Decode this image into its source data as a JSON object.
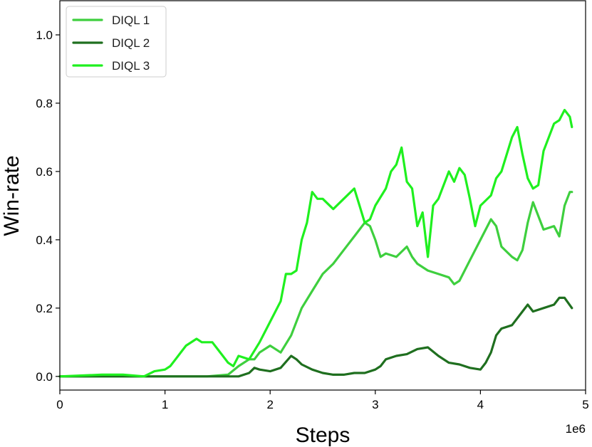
{
  "chart_data": {
    "type": "line",
    "xlabel": "Steps",
    "ylabel": "Win-rate",
    "x_offset_label": "1e6",
    "xlim": [
      0,
      5
    ],
    "ylim": [
      -0.04,
      1.1
    ],
    "xticks": [
      0,
      1,
      2,
      3,
      4,
      5
    ],
    "xtick_labels": [
      "0",
      "1",
      "2",
      "3",
      "4",
      "5"
    ],
    "yticks": [
      0.0,
      0.2,
      0.4,
      0.6,
      0.8,
      1.0
    ],
    "ytick_labels": [
      "0.0",
      "0.2",
      "0.4",
      "0.6",
      "0.8",
      "1.0"
    ],
    "grid": false,
    "legend_position": "top-left",
    "series": [
      {
        "name": "DIQL 1",
        "color": "#3ecf3e",
        "points": [
          [
            0,
            0.0
          ],
          [
            0.5,
            0.0
          ],
          [
            1.0,
            0.0
          ],
          [
            1.4,
            0.0
          ],
          [
            1.6,
            0.005
          ],
          [
            1.7,
            0.03
          ],
          [
            1.8,
            0.05
          ],
          [
            1.85,
            0.05
          ],
          [
            1.9,
            0.07
          ],
          [
            2.0,
            0.09
          ],
          [
            2.1,
            0.07
          ],
          [
            2.2,
            0.12
          ],
          [
            2.3,
            0.2
          ],
          [
            2.4,
            0.25
          ],
          [
            2.5,
            0.3
          ],
          [
            2.6,
            0.33
          ],
          [
            2.7,
            0.37
          ],
          [
            2.8,
            0.41
          ],
          [
            2.9,
            0.45
          ],
          [
            2.95,
            0.44
          ],
          [
            3.0,
            0.4
          ],
          [
            3.05,
            0.35
          ],
          [
            3.1,
            0.36
          ],
          [
            3.2,
            0.35
          ],
          [
            3.3,
            0.38
          ],
          [
            3.35,
            0.35
          ],
          [
            3.4,
            0.33
          ],
          [
            3.5,
            0.31
          ],
          [
            3.6,
            0.3
          ],
          [
            3.7,
            0.29
          ],
          [
            3.75,
            0.27
          ],
          [
            3.8,
            0.28
          ],
          [
            3.9,
            0.34
          ],
          [
            4.0,
            0.4
          ],
          [
            4.1,
            0.46
          ],
          [
            4.15,
            0.44
          ],
          [
            4.2,
            0.38
          ],
          [
            4.3,
            0.35
          ],
          [
            4.35,
            0.34
          ],
          [
            4.4,
            0.37
          ],
          [
            4.45,
            0.45
          ],
          [
            4.5,
            0.51
          ],
          [
            4.55,
            0.47
          ],
          [
            4.6,
            0.43
          ],
          [
            4.7,
            0.44
          ],
          [
            4.75,
            0.41
          ],
          [
            4.8,
            0.5
          ],
          [
            4.85,
            0.54
          ],
          [
            4.87,
            0.54
          ]
        ]
      },
      {
        "name": "DIQL 2",
        "color": "#1f6f1f",
        "points": [
          [
            0,
            0.0
          ],
          [
            1.0,
            0.0
          ],
          [
            1.7,
            0.0
          ],
          [
            1.8,
            0.01
          ],
          [
            1.85,
            0.025
          ],
          [
            1.9,
            0.02
          ],
          [
            2.0,
            0.015
          ],
          [
            2.1,
            0.025
          ],
          [
            2.2,
            0.06
          ],
          [
            2.25,
            0.05
          ],
          [
            2.3,
            0.035
          ],
          [
            2.4,
            0.02
          ],
          [
            2.5,
            0.01
          ],
          [
            2.6,
            0.005
          ],
          [
            2.7,
            0.005
          ],
          [
            2.8,
            0.01
          ],
          [
            2.9,
            0.01
          ],
          [
            3.0,
            0.02
          ],
          [
            3.05,
            0.03
          ],
          [
            3.1,
            0.05
          ],
          [
            3.2,
            0.06
          ],
          [
            3.3,
            0.065
          ],
          [
            3.4,
            0.08
          ],
          [
            3.5,
            0.085
          ],
          [
            3.6,
            0.06
          ],
          [
            3.7,
            0.04
          ],
          [
            3.8,
            0.035
          ],
          [
            3.9,
            0.025
          ],
          [
            4.0,
            0.02
          ],
          [
            4.05,
            0.04
          ],
          [
            4.1,
            0.07
          ],
          [
            4.15,
            0.12
          ],
          [
            4.2,
            0.14
          ],
          [
            4.3,
            0.15
          ],
          [
            4.4,
            0.19
          ],
          [
            4.45,
            0.21
          ],
          [
            4.5,
            0.19
          ],
          [
            4.6,
            0.2
          ],
          [
            4.7,
            0.21
          ],
          [
            4.75,
            0.23
          ],
          [
            4.8,
            0.23
          ],
          [
            4.87,
            0.2
          ]
        ]
      },
      {
        "name": "DIQL 3",
        "color": "#1ff01f",
        "points": [
          [
            0,
            0.0
          ],
          [
            0.4,
            0.005
          ],
          [
            0.6,
            0.005
          ],
          [
            0.8,
            0.0
          ],
          [
            0.9,
            0.015
          ],
          [
            1.0,
            0.02
          ],
          [
            1.05,
            0.03
          ],
          [
            1.1,
            0.05
          ],
          [
            1.2,
            0.09
          ],
          [
            1.3,
            0.11
          ],
          [
            1.35,
            0.1
          ],
          [
            1.45,
            0.1
          ],
          [
            1.5,
            0.08
          ],
          [
            1.6,
            0.04
          ],
          [
            1.65,
            0.03
          ],
          [
            1.7,
            0.06
          ],
          [
            1.8,
            0.05
          ],
          [
            1.9,
            0.1
          ],
          [
            2.0,
            0.16
          ],
          [
            2.1,
            0.22
          ],
          [
            2.15,
            0.3
          ],
          [
            2.2,
            0.3
          ],
          [
            2.25,
            0.31
          ],
          [
            2.3,
            0.4
          ],
          [
            2.35,
            0.45
          ],
          [
            2.4,
            0.54
          ],
          [
            2.45,
            0.52
          ],
          [
            2.5,
            0.52
          ],
          [
            2.6,
            0.49
          ],
          [
            2.7,
            0.52
          ],
          [
            2.8,
            0.55
          ],
          [
            2.85,
            0.5
          ],
          [
            2.9,
            0.45
          ],
          [
            2.95,
            0.46
          ],
          [
            3.0,
            0.5
          ],
          [
            3.1,
            0.55
          ],
          [
            3.15,
            0.6
          ],
          [
            3.2,
            0.62
          ],
          [
            3.25,
            0.67
          ],
          [
            3.3,
            0.57
          ],
          [
            3.35,
            0.55
          ],
          [
            3.4,
            0.44
          ],
          [
            3.45,
            0.48
          ],
          [
            3.5,
            0.35
          ],
          [
            3.55,
            0.5
          ],
          [
            3.6,
            0.52
          ],
          [
            3.7,
            0.6
          ],
          [
            3.75,
            0.57
          ],
          [
            3.8,
            0.61
          ],
          [
            3.85,
            0.59
          ],
          [
            3.9,
            0.52
          ],
          [
            3.95,
            0.44
          ],
          [
            4.0,
            0.5
          ],
          [
            4.1,
            0.53
          ],
          [
            4.15,
            0.58
          ],
          [
            4.2,
            0.6
          ],
          [
            4.3,
            0.7
          ],
          [
            4.35,
            0.73
          ],
          [
            4.4,
            0.65
          ],
          [
            4.45,
            0.58
          ],
          [
            4.5,
            0.55
          ],
          [
            4.55,
            0.56
          ],
          [
            4.6,
            0.66
          ],
          [
            4.7,
            0.74
          ],
          [
            4.75,
            0.75
          ],
          [
            4.8,
            0.78
          ],
          [
            4.85,
            0.76
          ],
          [
            4.87,
            0.73
          ]
        ]
      }
    ]
  }
}
